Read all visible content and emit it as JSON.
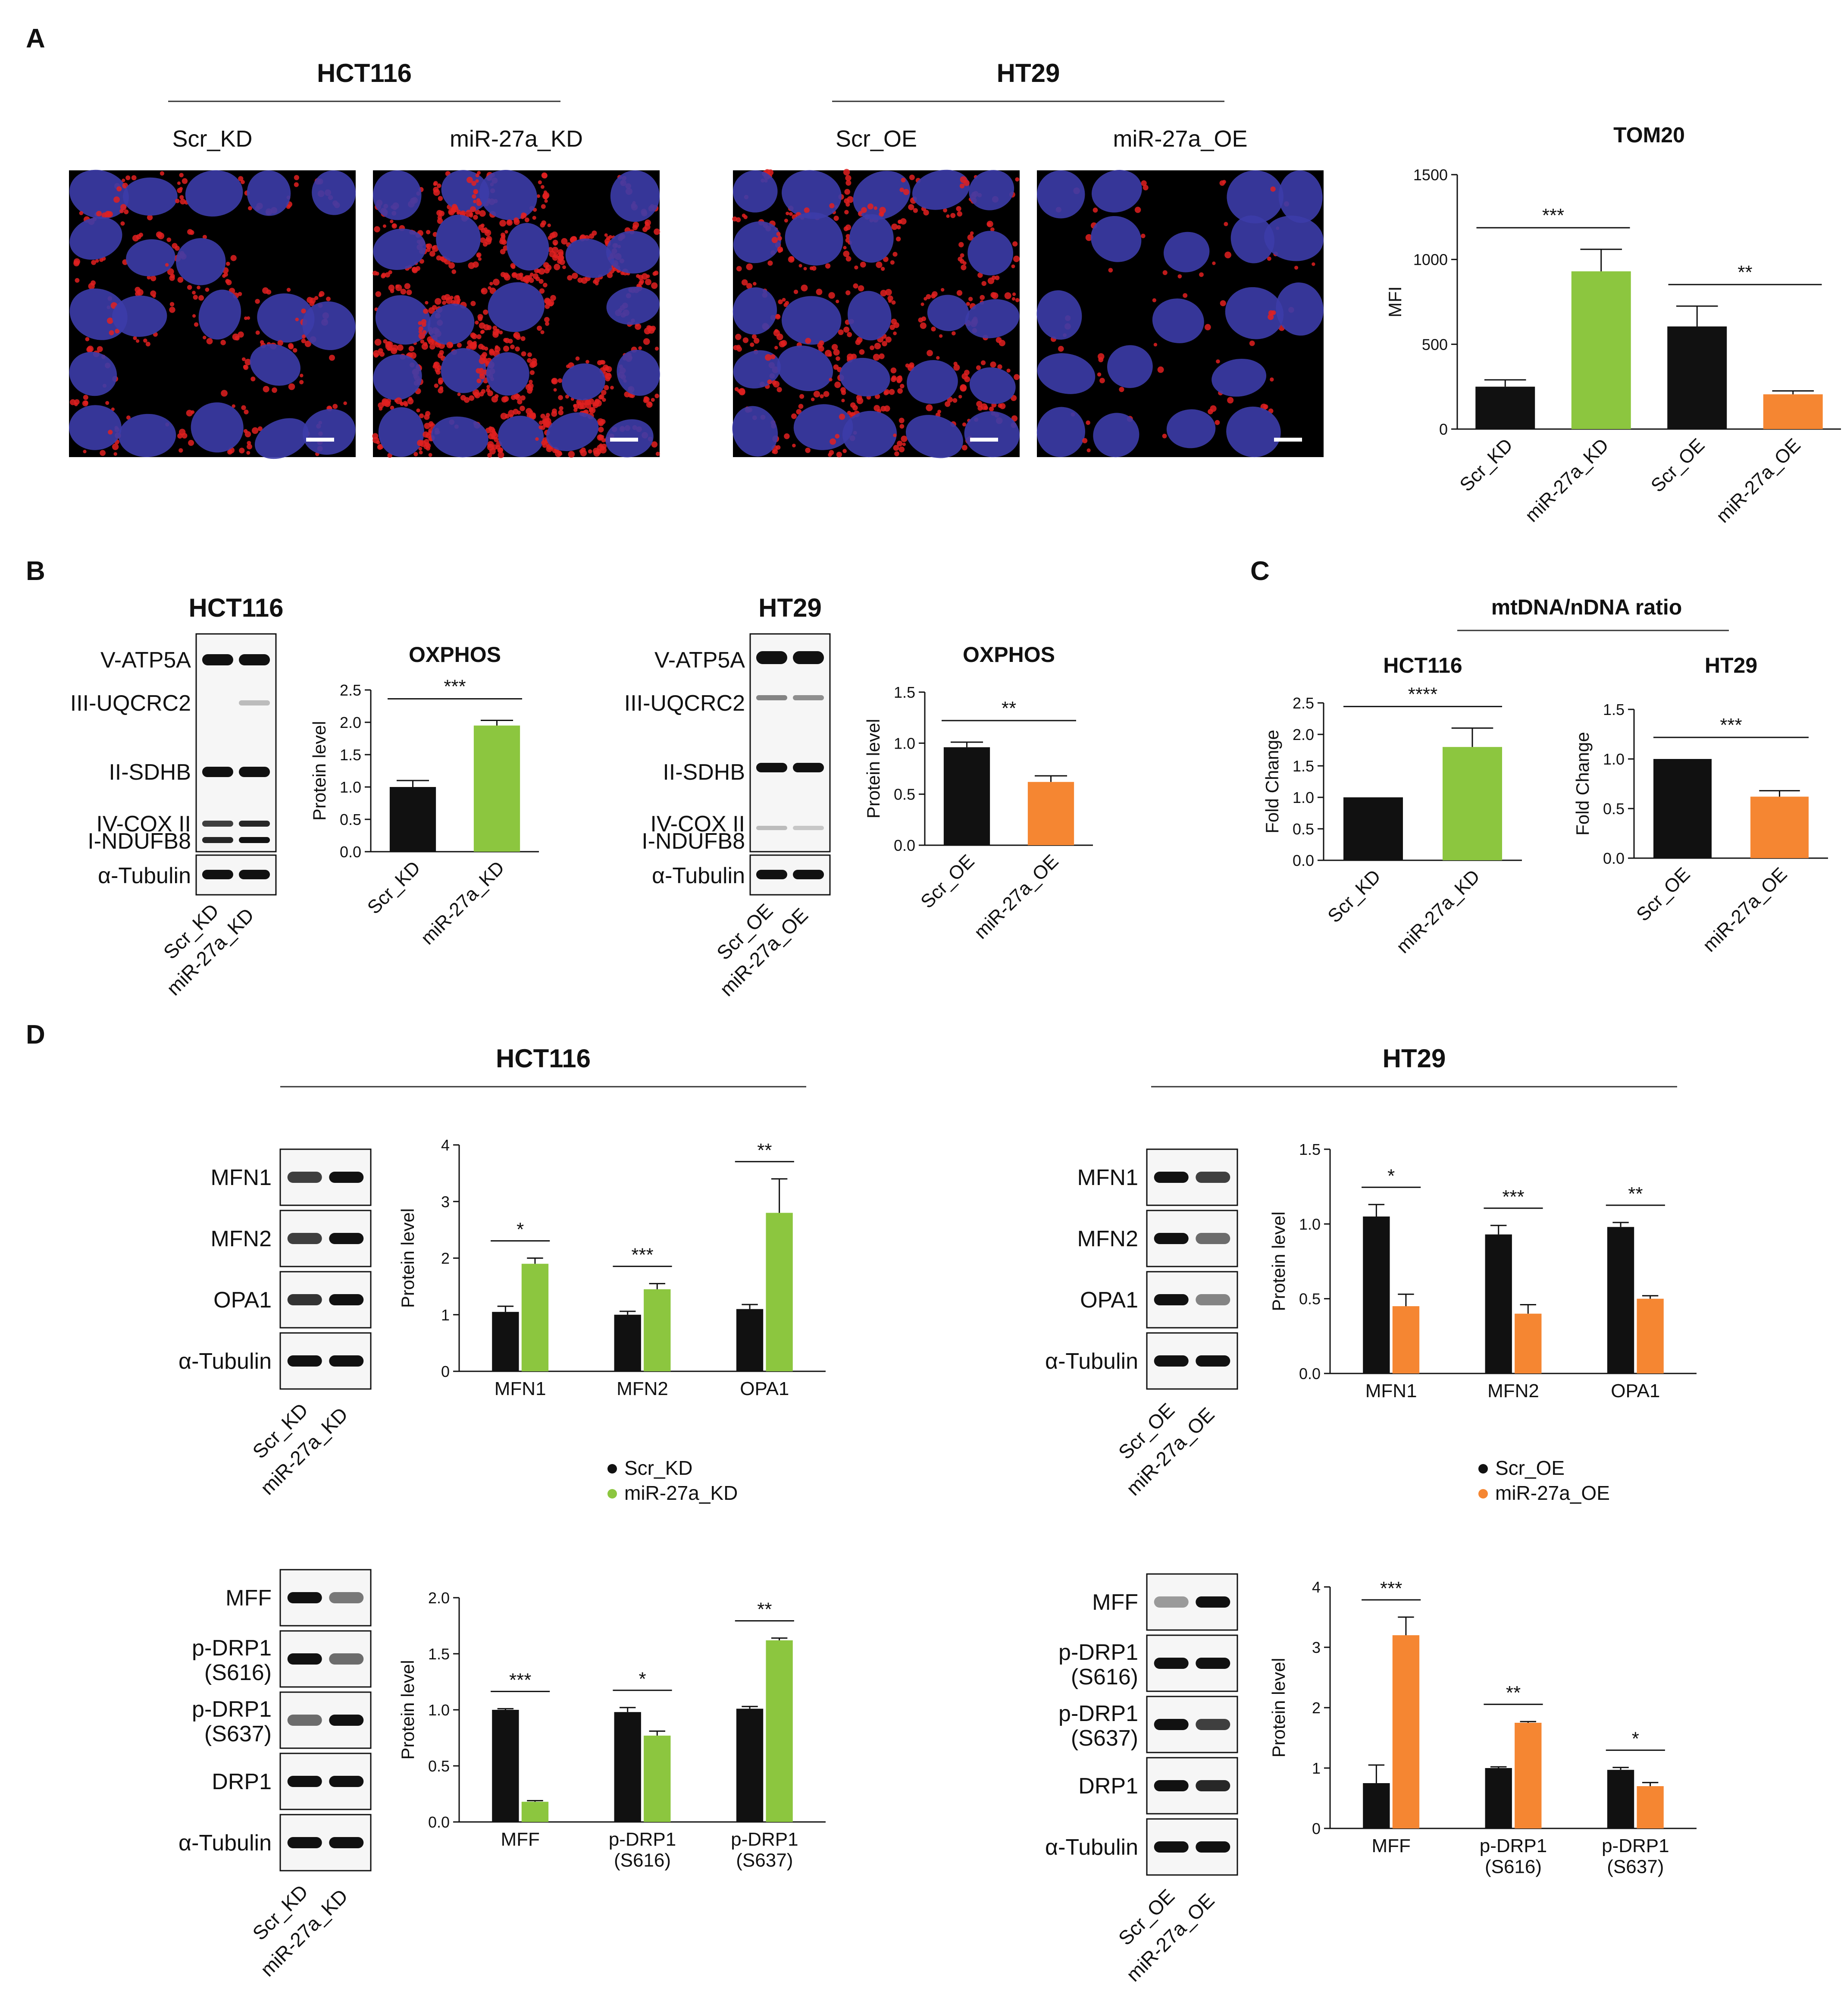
{
  "panels": {
    "A": {
      "label": "A",
      "groups": [
        {
          "title": "HCT116",
          "images": [
            {
              "label": "Scr_KD",
              "density": 0.9
            },
            {
              "label": "miR-27a_KD",
              "density": 2.4
            }
          ]
        },
        {
          "title": "HT29",
          "images": [
            {
              "label": "Scr_OE",
              "density": 1.2
            },
            {
              "label": "miR-27a_OE",
              "density": 0.25
            }
          ]
        }
      ]
    },
    "B": {
      "label": "B",
      "blots": [
        {
          "title": "HCT116",
          "bands": [
            "V-ATP5A",
            "III-UQCRC2",
            "II-SDHB",
            "IV-COX II",
            "I-NDUFB8",
            "α-Tubulin"
          ],
          "lanes": [
            "Scr_KD",
            "miR-27a_KD"
          ]
        },
        {
          "title": "HT29",
          "bands": [
            "V-ATP5A",
            "III-UQCRC2",
            "II-SDHB",
            "IV-COX II",
            "I-NDUFB8",
            "α-Tubulin"
          ],
          "lanes": [
            "Scr_OE",
            "miR-27a_OE"
          ]
        }
      ]
    },
    "C": {
      "label": "C",
      "title": "mtDNA/nDNA  ratio"
    },
    "D": {
      "label": "D",
      "groups": [
        {
          "title": "HCT116",
          "blot_top": {
            "bands": [
              "MFN1",
              "MFN2",
              "OPA1",
              "α-Tubulin"
            ],
            "lanes": [
              "Scr_KD",
              "miR-27a_KD"
            ]
          },
          "blot_bottom": {
            "bands": [
              "MFF",
              "p-DRP1\n(S616)",
              "p-DRP1\n(S637)",
              "DRP1",
              "α-Tubulin"
            ],
            "lanes": [
              "Scr_KD",
              "miR-27a_KD"
            ]
          },
          "legend": [
            "Scr_KD",
            "miR-27a_KD"
          ]
        },
        {
          "title": "HT29",
          "blot_top": {
            "bands": [
              "MFN1",
              "MFN2",
              "OPA1",
              "α-Tubulin"
            ],
            "lanes": [
              "Scr_OE",
              "miR-27a_OE"
            ]
          },
          "blot_bottom": {
            "bands": [
              "MFF",
              "p-DRP1\n(S616)",
              "p-DRP1\n(S637)",
              "DRP1",
              "α-Tubulin"
            ],
            "lanes": [
              "Scr_OE",
              "miR-27a_OE"
            ]
          },
          "legend": [
            "Scr_OE",
            "miR-27a_OE"
          ]
        }
      ]
    }
  },
  "colors": {
    "black": "#111111",
    "green": "#8cc63f",
    "orange": "#f58632",
    "blue_nuclei": "#3c3ca8",
    "red_signal": "#e02020"
  },
  "chart_data": [
    {
      "id": "tom20",
      "type": "bar",
      "title": "TOM20",
      "ylabel": "MFI",
      "xlabel": "",
      "categories": [
        "Scr_KD",
        "miR-27a_KD",
        "Scr_OE",
        "miR-27a_OE"
      ],
      "values": [
        250,
        930,
        605,
        205
      ],
      "errors": [
        40,
        130,
        120,
        20
      ],
      "colors": [
        "#111111",
        "#8cc63f",
        "#111111",
        "#f58632"
      ],
      "ylim": [
        0,
        1500
      ],
      "yticks": [
        0,
        500,
        1000,
        1500
      ],
      "yticklabels": [
        "0",
        "500",
        "1000",
        "1500"
      ],
      "significance": [
        {
          "from": 0,
          "to": 1,
          "label": "***"
        },
        {
          "from": 2,
          "to": 3,
          "label": "**"
        }
      ]
    },
    {
      "id": "oxphos_hct116",
      "type": "bar",
      "title": "OXPHOS",
      "ylabel": "Protein level",
      "xlabel": "",
      "categories": [
        "Scr_KD",
        "miR-27a_KD"
      ],
      "values": [
        1.0,
        1.95
      ],
      "errors": [
        0.1,
        0.08
      ],
      "colors": [
        "#111111",
        "#8cc63f"
      ],
      "ylim": [
        0,
        2.5
      ],
      "yticks": [
        0,
        0.5,
        1.0,
        1.5,
        2.0,
        2.5
      ],
      "yticklabels": [
        "0.0",
        "0.5",
        "1.0",
        "1.5",
        "2.0",
        "2.5"
      ],
      "significance": [
        {
          "from": 0,
          "to": 1,
          "label": "***"
        }
      ]
    },
    {
      "id": "oxphos_ht29",
      "type": "bar",
      "title": "OXPHOS",
      "ylabel": "Protein level",
      "xlabel": "",
      "categories": [
        "Scr_OE",
        "miR-27a_OE"
      ],
      "values": [
        0.96,
        0.62
      ],
      "errors": [
        0.05,
        0.06
      ],
      "colors": [
        "#111111",
        "#f58632"
      ],
      "ylim": [
        0,
        1.5
      ],
      "yticks": [
        0,
        0.5,
        1.0,
        1.5
      ],
      "yticklabels": [
        "0.0",
        "0.5",
        "1.0",
        "1.5"
      ],
      "significance": [
        {
          "from": 0,
          "to": 1,
          "label": "**"
        }
      ]
    },
    {
      "id": "mtdna_hct116",
      "type": "bar",
      "title": "HCT116",
      "ylabel": "Fold Change",
      "xlabel": "",
      "categories": [
        "Scr_KD",
        "miR-27a_KD"
      ],
      "values": [
        1.0,
        1.8
      ],
      "errors": [
        0,
        0.3
      ],
      "colors": [
        "#111111",
        "#8cc63f"
      ],
      "ylim": [
        0,
        2.5
      ],
      "yticks": [
        0,
        0.5,
        1.0,
        1.5,
        2.0,
        2.5
      ],
      "yticklabels": [
        "0.0",
        "0.5",
        "1.0",
        "1.5",
        "2.0",
        "2.5"
      ],
      "significance": [
        {
          "from": 0,
          "to": 1,
          "label": "****"
        }
      ]
    },
    {
      "id": "mtdna_ht29",
      "type": "bar",
      "title": "HT29",
      "ylabel": "Fold Change",
      "xlabel": "",
      "categories": [
        "Scr_OE",
        "miR-27a_OE"
      ],
      "values": [
        1.0,
        0.62
      ],
      "errors": [
        0,
        0.06
      ],
      "colors": [
        "#111111",
        "#f58632"
      ],
      "ylim": [
        0,
        1.5
      ],
      "yticks": [
        0,
        0.5,
        1.0,
        1.5
      ],
      "yticklabels": [
        "0.0",
        "0.5",
        "1.0",
        "1.5"
      ],
      "significance": [
        {
          "from": 0,
          "to": 1,
          "label": "***"
        }
      ]
    },
    {
      "id": "fusion_hct116",
      "type": "grouped_bar",
      "ylabel": "Protein level",
      "xlabel": "",
      "categories": [
        "MFN1",
        "MFN2",
        "OPA1"
      ],
      "series": [
        {
          "name": "Scr_KD",
          "color": "#111111",
          "values": [
            1.05,
            1.0,
            1.1
          ],
          "errors": [
            0.1,
            0.06,
            0.08
          ]
        },
        {
          "name": "miR-27a_KD",
          "color": "#8cc63f",
          "values": [
            1.9,
            1.45,
            2.8
          ],
          "errors": [
            0.1,
            0.1,
            0.6
          ]
        }
      ],
      "ylim": [
        0,
        4
      ],
      "yticks": [
        0,
        1,
        2,
        3,
        4
      ],
      "yticklabels": [
        "0",
        "1",
        "2",
        "3",
        "4"
      ],
      "significance": [
        "*",
        "***",
        "**"
      ]
    },
    {
      "id": "fusion_ht29",
      "type": "grouped_bar",
      "ylabel": "Protein level",
      "xlabel": "",
      "categories": [
        "MFN1",
        "MFN2",
        "OPA1"
      ],
      "series": [
        {
          "name": "Scr_OE",
          "color": "#111111",
          "values": [
            1.05,
            0.93,
            0.98
          ],
          "errors": [
            0.08,
            0.06,
            0.03
          ]
        },
        {
          "name": "miR-27a_OE",
          "color": "#f58632",
          "values": [
            0.45,
            0.4,
            0.5
          ],
          "errors": [
            0.08,
            0.06,
            0.02
          ]
        }
      ],
      "ylim": [
        0,
        1.5
      ],
      "yticks": [
        0,
        0.5,
        1.0,
        1.5
      ],
      "yticklabels": [
        "0.0",
        "0.5",
        "1.0",
        "1.5"
      ],
      "significance": [
        "*",
        "***",
        "**"
      ]
    },
    {
      "id": "fission_hct116",
      "type": "grouped_bar",
      "ylabel": "Protein level",
      "xlabel": "",
      "categories": [
        "MFF",
        "p-DRP1\n(S616)",
        "p-DRP1\n(S637)"
      ],
      "series": [
        {
          "name": "Scr_KD",
          "color": "#111111",
          "values": [
            1.0,
            0.98,
            1.01
          ],
          "errors": [
            0.01,
            0.04,
            0.02
          ]
        },
        {
          "name": "miR-27a_KD",
          "color": "#8cc63f",
          "values": [
            0.18,
            0.77,
            1.62
          ],
          "errors": [
            0.01,
            0.04,
            0.02
          ]
        }
      ],
      "ylim": [
        0,
        2.0
      ],
      "yticks": [
        0,
        0.5,
        1.0,
        1.5,
        2.0
      ],
      "yticklabels": [
        "0.0",
        "0.5",
        "1.0",
        "1.5",
        "2.0"
      ],
      "significance": [
        "***",
        "*",
        "**"
      ]
    },
    {
      "id": "fission_ht29",
      "type": "grouped_bar",
      "ylabel": "Protein level",
      "xlabel": "",
      "categories": [
        "MFF",
        "p-DRP1\n(S616)",
        "p-DRP1\n(S637)"
      ],
      "series": [
        {
          "name": "Scr_OE",
          "color": "#111111",
          "values": [
            0.75,
            1.0,
            0.97
          ],
          "errors": [
            0.3,
            0.02,
            0.04
          ]
        },
        {
          "name": "miR-27a_OE",
          "color": "#f58632",
          "values": [
            3.2,
            1.75,
            0.7
          ],
          "errors": [
            0.3,
            0.02,
            0.06
          ]
        }
      ],
      "ylim": [
        0,
        4
      ],
      "yticks": [
        0,
        1,
        2,
        3,
        4
      ],
      "yticklabels": [
        "0",
        "1",
        "2",
        "3",
        "4"
      ],
      "significance": [
        "***",
        "**",
        "*"
      ]
    }
  ]
}
